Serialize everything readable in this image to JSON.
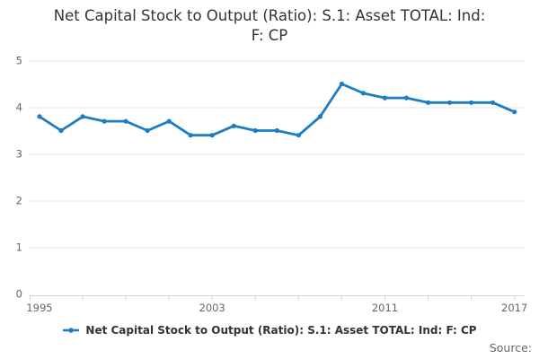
{
  "title": {
    "lines": [
      "Net Capital Stock to Output (Ratio): S.1: Asset TOTAL: Ind:",
      "F: CP"
    ],
    "full_text": "Net Capital Stock to Output (Ratio): S.1: Asset TOTAL: Ind: F: CP"
  },
  "legend": {
    "label": "Net Capital Stock to Output (Ratio): S.1: Asset TOTAL: Ind: F: CP"
  },
  "source": {
    "label": "Source:"
  },
  "colors": {
    "line": "#1d7dc4",
    "grid": "#e6e6e6",
    "axis": "#ccd6eb",
    "tick_label": "#666666",
    "title": "#333333",
    "legend_text": "#333333",
    "source_text": "#666666"
  },
  "chart_data": {
    "type": "line",
    "title": "Net Capital Stock to Output (Ratio): S.1: Asset TOTAL: Ind: F: CP",
    "x": [
      1995,
      1996,
      1997,
      1998,
      1999,
      2000,
      2001,
      2002,
      2003,
      2004,
      2005,
      2006,
      2007,
      2008,
      2009,
      2010,
      2011,
      2012,
      2013,
      2014,
      2015,
      2016,
      2017
    ],
    "series": [
      {
        "name": "Net Capital Stock to Output (Ratio): S.1: Asset TOTAL: Ind: F: CP",
        "values": [
          3.8,
          3.5,
          3.8,
          3.7,
          3.7,
          3.5,
          3.7,
          3.4,
          3.4,
          3.6,
          3.5,
          3.5,
          3.4,
          3.8,
          4.5,
          4.3,
          4.2,
          4.2,
          4.1,
          4.1,
          4.1,
          4.1,
          3.9
        ]
      }
    ],
    "xlabel": "",
    "ylabel": "",
    "ylim": [
      0,
      5
    ],
    "yticks": [
      0,
      1,
      2,
      3,
      4,
      5
    ],
    "x_tick_years": [
      1997,
      1999,
      2001,
      2003,
      2005,
      2007,
      2009,
      2011,
      2013,
      2015,
      2017
    ],
    "x_labeled_years": [
      1995,
      2003,
      2011,
      2017
    ],
    "grid": "horizontal",
    "legend_position": "bottom",
    "markers": "circle"
  }
}
